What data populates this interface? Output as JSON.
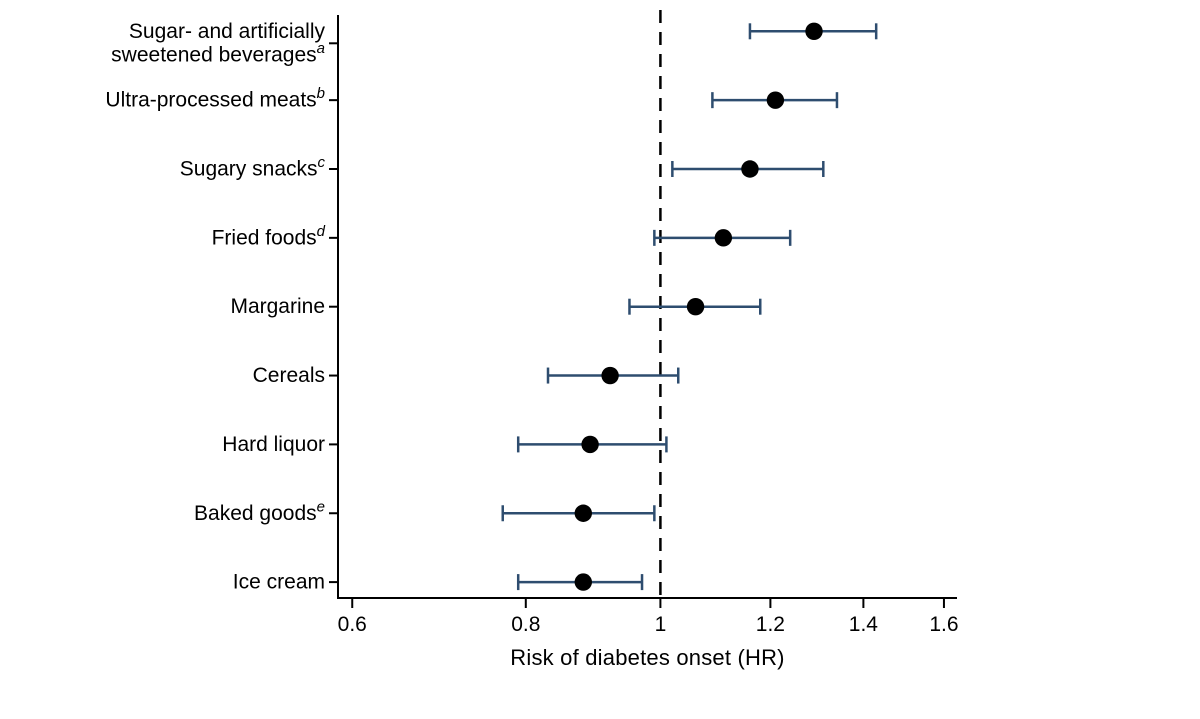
{
  "figure": {
    "background_color": "#ffffff",
    "text_color": "#000000"
  },
  "chart_data": {
    "type": "scatter",
    "subtype": "forest-plot",
    "title": "",
    "xlabel": "Risk of diabetes onset (HR)",
    "ylabel": "",
    "x_scale": "log",
    "xlim": [
      0.586,
      1.635
    ],
    "x_ticks": [
      0.6,
      0.8,
      1,
      1.2,
      1.4,
      1.6
    ],
    "x_tick_labels": [
      "0.6",
      "0.8",
      "1",
      "1.2",
      "1.4",
      "1.6"
    ],
    "grid": false,
    "legend": "none",
    "reference_line": {
      "x": 1,
      "style": "dashed",
      "color": "#000000"
    },
    "marker_color": "#000000",
    "ci_color": "#2e4d6f",
    "items": [
      {
        "label": "Sugar- and artificially sweetened beverages",
        "label_lines": [
          "Sugar- and artificially",
          "sweetened beverages"
        ],
        "superscript": "a",
        "hr": 1.29,
        "ci_low": 1.16,
        "ci_high": 1.43
      },
      {
        "label": "Ultra-processed meats",
        "label_lines": [
          "Ultra-processed meats"
        ],
        "superscript": "b",
        "hr": 1.21,
        "ci_low": 1.09,
        "ci_high": 1.34
      },
      {
        "label": "Sugary snacks",
        "label_lines": [
          "Sugary snacks"
        ],
        "superscript": "c",
        "hr": 1.16,
        "ci_low": 1.02,
        "ci_high": 1.31
      },
      {
        "label": "Fried foods",
        "label_lines": [
          "Fried foods"
        ],
        "superscript": "d",
        "hr": 1.11,
        "ci_low": 0.99,
        "ci_high": 1.24
      },
      {
        "label": "Margarine",
        "label_lines": [
          "Margarine"
        ],
        "superscript": "",
        "hr": 1.06,
        "ci_low": 0.95,
        "ci_high": 1.18
      },
      {
        "label": "Cereals",
        "label_lines": [
          "Cereals"
        ],
        "superscript": "",
        "hr": 0.92,
        "ci_low": 0.83,
        "ci_high": 1.03
      },
      {
        "label": "Hard liquor",
        "label_lines": [
          "Hard liquor"
        ],
        "superscript": "",
        "hr": 0.89,
        "ci_low": 0.79,
        "ci_high": 1.01
      },
      {
        "label": "Baked goods",
        "label_lines": [
          "Baked goods"
        ],
        "superscript": "e",
        "hr": 0.88,
        "ci_low": 0.77,
        "ci_high": 0.99
      },
      {
        "label": "Ice cream",
        "label_lines": [
          "Ice cream"
        ],
        "superscript": "",
        "hr": 0.88,
        "ci_low": 0.79,
        "ci_high": 0.97
      }
    ]
  }
}
